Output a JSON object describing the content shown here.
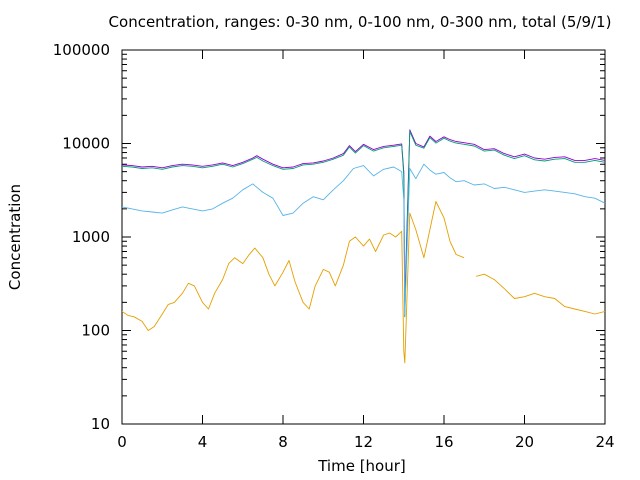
{
  "chart_data": {
    "type": "line",
    "title": "Concentration, ranges: 0-30 nm, 0-100 nm, 0-300 nm, total (5/9/1)",
    "xlabel": "Time [hour]",
    "ylabel": "Concentration",
    "xlim": [
      0,
      24
    ],
    "ylim": [
      10,
      100000
    ],
    "y_scale": "log",
    "grid": false,
    "legend": "none",
    "x_ticks": [
      "0",
      "4",
      "8",
      "12",
      "16",
      "20",
      "24"
    ],
    "x_tick_values": [
      0,
      4,
      8,
      12,
      16,
      20,
      24
    ],
    "y_ticks": [
      "10",
      "100",
      "1000",
      "10000",
      "100000"
    ],
    "y_tick_values": [
      10,
      100,
      1000,
      10000,
      100000
    ],
    "series": [
      {
        "color": "#9400d3",
        "x": [
          0,
          0.5,
          1,
          1.5,
          2,
          2.5,
          3,
          3.5,
          4,
          4.5,
          5,
          5.5,
          6,
          6.5,
          6.7,
          7,
          7.5,
          8,
          8.5,
          9,
          9.5,
          10,
          10.5,
          11,
          11.3,
          11.6,
          12,
          12.5,
          13,
          13.5,
          13.9,
          14.0,
          14.05,
          14.3,
          14.6,
          15,
          15.3,
          15.6,
          16,
          16.3,
          16.6,
          17,
          17.5,
          18,
          18.5,
          19,
          19.5,
          20,
          20.5,
          21,
          21.5,
          22,
          22.5,
          23,
          23.5,
          24
        ],
        "values": [
          5900,
          5800,
          5600,
          5700,
          5500,
          5800,
          6000,
          5900,
          5700,
          5900,
          6200,
          5800,
          6300,
          7000,
          7400,
          6800,
          6000,
          5500,
          5600,
          6100,
          6200,
          6500,
          7000,
          7800,
          9500,
          8200,
          9800,
          8600,
          9300,
          9600,
          9900,
          5000,
          200,
          14000,
          10000,
          9200,
          12000,
          10500,
          11800,
          11000,
          10500,
          10200,
          9800,
          8600,
          8800,
          7800,
          7200,
          7700,
          7000,
          6800,
          7100,
          7200,
          6600,
          6600,
          6900,
          6600
        ]
      },
      {
        "color": "#009e73",
        "x": [
          0,
          0.5,
          1,
          1.5,
          2,
          2.5,
          3,
          3.5,
          4,
          4.5,
          5,
          5.5,
          6,
          6.5,
          6.7,
          7,
          7.5,
          8,
          8.5,
          9,
          9.5,
          10,
          10.5,
          11,
          11.3,
          11.6,
          12,
          12.5,
          13,
          13.5,
          13.9,
          14.0,
          14.05,
          14.3,
          14.6,
          15,
          15.3,
          15.6,
          16,
          16.3,
          16.6,
          17,
          17.5,
          18,
          18.5,
          19,
          19.5,
          20,
          20.5,
          21,
          21.5,
          22,
          22.5,
          23,
          23.5,
          24
        ],
        "values": [
          5700,
          5600,
          5400,
          5500,
          5300,
          5600,
          5800,
          5700,
          5500,
          5700,
          6000,
          5600,
          6100,
          6800,
          7100,
          6500,
          5800,
          5300,
          5400,
          5900,
          6000,
          6300,
          6800,
          7500,
          9200,
          7900,
          9500,
          8300,
          9000,
          9300,
          9600,
          4500,
          140,
          13500,
          9600,
          8900,
          11600,
          10100,
          11400,
          10600,
          10100,
          9800,
          9400,
          8300,
          8500,
          7500,
          6900,
          7400,
          6700,
          6500,
          6800,
          6900,
          6300,
          6300,
          6600,
          6300
        ]
      },
      {
        "color": "#56b4e9",
        "x": [
          0,
          0.5,
          1,
          1.5,
          2,
          2.5,
          3,
          3.5,
          4,
          4.5,
          5,
          5.5,
          6,
          6.5,
          7,
          7.5,
          8,
          8.5,
          9,
          9.5,
          10,
          10.5,
          11,
          11.5,
          12,
          12.5,
          13,
          13.5,
          13.9,
          14.0,
          14.05,
          14.3,
          14.6,
          15,
          15.3,
          15.6,
          16,
          16.3,
          16.6,
          17,
          17.5,
          18,
          18.5,
          19,
          19.5,
          20,
          20.5,
          21,
          21.5,
          22,
          22.5,
          23,
          23.5,
          24
        ],
        "values": [
          2100,
          2000,
          1900,
          1850,
          1800,
          1950,
          2100,
          2000,
          1900,
          2000,
          2300,
          2600,
          3200,
          3700,
          3000,
          2600,
          1700,
          1800,
          2300,
          2700,
          2500,
          3200,
          4000,
          5400,
          5800,
          4500,
          5300,
          5600,
          5000,
          2500,
          150,
          5400,
          4200,
          6000,
          5200,
          4700,
          4900,
          4300,
          3900,
          4000,
          3600,
          3700,
          3300,
          3400,
          3200,
          3000,
          3100,
          3200,
          3100,
          3000,
          2900,
          2700,
          2600,
          2300
        ]
      },
      {
        "color": "#e69f00",
        "x": [
          0,
          0.3,
          0.6,
          1,
          1.3,
          1.6,
          2,
          2.3,
          2.6,
          3,
          3.3,
          3.6,
          4,
          4.3,
          4.6,
          5,
          5.3,
          5.6,
          6,
          6.3,
          6.6,
          7,
          7.3,
          7.6,
          8,
          8.3,
          8.6,
          9,
          9.3,
          9.6,
          10,
          10.3,
          10.6,
          11,
          11.3,
          11.6,
          12,
          12.3,
          12.6,
          13,
          13.3,
          13.6,
          13.9,
          14.0,
          14.05,
          14.3,
          14.6,
          15,
          15.3,
          15.6,
          16,
          16.3,
          16.6,
          17,
          17.3,
          17.6,
          18,
          18.5,
          19,
          19.5,
          20,
          20.5,
          21,
          21.5,
          22,
          22.5,
          23,
          23.5,
          24
        ],
        "values": [
          160,
          145,
          140,
          125,
          100,
          110,
          150,
          190,
          200,
          250,
          320,
          300,
          200,
          170,
          250,
          350,
          520,
          600,
          520,
          640,
          760,
          600,
          400,
          300,
          420,
          560,
          330,
          200,
          170,
          300,
          450,
          420,
          300,
          500,
          900,
          1000,
          800,
          950,
          700,
          1050,
          1100,
          1000,
          1150,
          60,
          45,
          1800,
          1200,
          600,
          1200,
          2400,
          1600,
          900,
          650,
          600,
          null,
          380,
          400,
          350,
          280,
          220,
          230,
          250,
          230,
          220,
          180,
          170,
          160,
          150,
          160
        ]
      }
    ]
  }
}
